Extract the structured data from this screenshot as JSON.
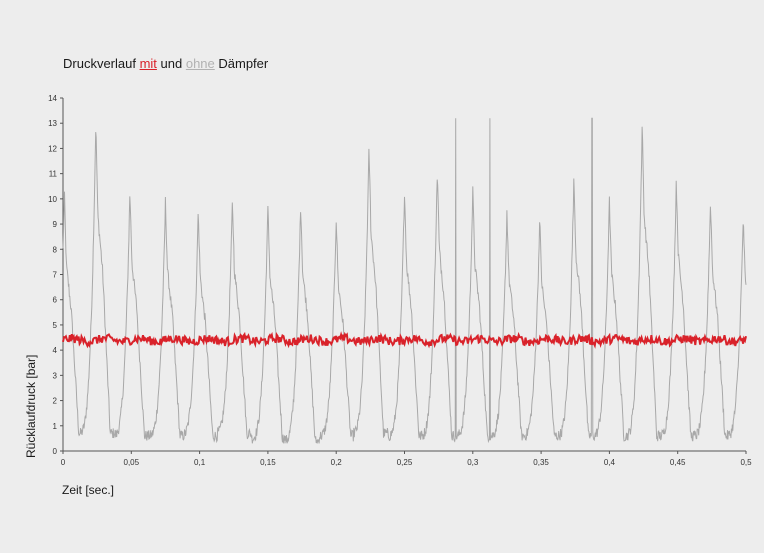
{
  "title": {
    "part1": "Druckverlauf ",
    "mit": "mit",
    "part2": " und ",
    "ohne": "ohne",
    "part3": " Dämpfer"
  },
  "chart_data": {
    "type": "line",
    "xlabel": "Zeit [sec.]",
    "ylabel": "Rücklaufdruck [bar]",
    "xlim": [
      0,
      0.5
    ],
    "ylim": [
      0,
      14
    ],
    "x_ticks": [
      "0",
      "0,05",
      "0,1",
      "0,15",
      "0,2",
      "0,25",
      "0,3",
      "0,35",
      "0,4",
      "0,45",
      "0,5"
    ],
    "y_ticks": [
      "0",
      "1",
      "2",
      "3",
      "4",
      "5",
      "6",
      "7",
      "8",
      "9",
      "10",
      "11",
      "12",
      "13",
      "14"
    ],
    "grid": false,
    "series": [
      {
        "name": "ohne",
        "color": "#a8a8a8",
        "description_points_note": "pulsating pressure without damper",
        "peak_times": [
          0.001,
          0.024,
          0.049,
          0.075,
          0.099,
          0.124,
          0.15,
          0.174,
          0.2,
          0.224,
          0.25,
          0.274,
          0.3,
          0.325,
          0.349,
          0.374,
          0.4,
          0.424,
          0.449,
          0.474,
          0.498
        ],
        "peak_values": [
          10.2,
          13.0,
          10.3,
          9.9,
          9.5,
          9.9,
          9.6,
          9.8,
          9.2,
          12.0,
          10.3,
          11.1,
          10.3,
          9.5,
          9.2,
          10.8,
          9.9,
          12.9,
          10.7,
          9.9,
          9.3
        ],
        "trough_values": [
          0.7,
          0.7,
          0.6,
          0.6,
          0.6,
          0.7,
          0.5,
          0.4,
          0.6,
          0.7,
          0.6,
          0.6,
          0.6,
          0.6,
          0.6,
          0.6,
          0.6,
          0.6,
          0.6,
          0.6,
          0.6
        ]
      },
      {
        "name": "mit",
        "color": "#d9222a",
        "mean_value": 4.4,
        "range": [
          4.2,
          4.7
        ]
      }
    ]
  }
}
